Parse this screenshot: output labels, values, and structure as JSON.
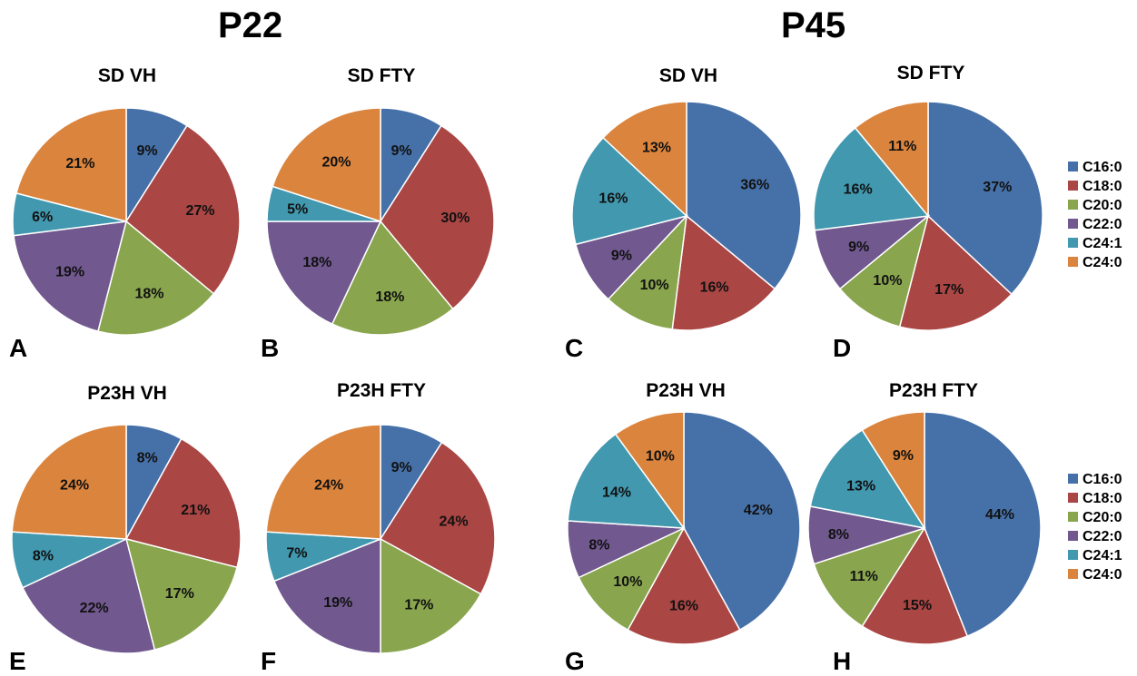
{
  "headings": {
    "left": "P22",
    "right": "P45"
  },
  "legend": [
    {
      "name": "C16:0",
      "color": "#4671A8"
    },
    {
      "name": "C18:0",
      "color": "#AA4644"
    },
    {
      "name": "C20:0",
      "color": "#89A54E"
    },
    {
      "name": "C22:0",
      "color": "#71588F"
    },
    {
      "name": "C24:1",
      "color": "#4198AF"
    },
    {
      "name": "C24:0",
      "color": "#DB843D"
    }
  ],
  "chart_data": [
    {
      "type": "pie",
      "panel": "A",
      "title": "SD VH",
      "group": "P22",
      "labels": [
        "C16:0",
        "C18:0",
        "C20:0",
        "C22:0",
        "C24:1",
        "C24:0"
      ],
      "values": [
        9,
        27,
        18,
        19,
        6,
        21
      ],
      "value_labels": [
        "9%",
        "27%",
        "18%",
        "19%",
        "6%",
        "21%"
      ]
    },
    {
      "type": "pie",
      "panel": "B",
      "title": "SD FTY",
      "group": "P22",
      "labels": [
        "C16:0",
        "C18:0",
        "C20:0",
        "C22:0",
        "C24:1",
        "C24:0"
      ],
      "values": [
        9,
        30,
        18,
        18,
        5,
        20
      ],
      "value_labels": [
        "9%",
        "30%",
        "18%",
        "18%",
        "5%",
        "20%"
      ]
    },
    {
      "type": "pie",
      "panel": "C",
      "title": "SD VH",
      "group": "P45",
      "labels": [
        "C16:0",
        "C18:0",
        "C20:0",
        "C22:0",
        "C24:1",
        "C24:0"
      ],
      "values": [
        36,
        16,
        10,
        9,
        16,
        13
      ],
      "value_labels": [
        "36%",
        "16%",
        "10%",
        "9%",
        "16%",
        "13%"
      ]
    },
    {
      "type": "pie",
      "panel": "D",
      "title": "SD FTY",
      "group": "P45",
      "labels": [
        "C16:0",
        "C18:0",
        "C20:0",
        "C22:0",
        "C24:1",
        "C24:0"
      ],
      "values": [
        37,
        17,
        10,
        9,
        16,
        11
      ],
      "value_labels": [
        "37%",
        "17%",
        "10%",
        "9%",
        "16%",
        "11%"
      ]
    },
    {
      "type": "pie",
      "panel": "E",
      "title": "P23H  VH",
      "group": "P22",
      "labels": [
        "C16:0",
        "C18:0",
        "C20:0",
        "C22:0",
        "C24:1",
        "C24:0"
      ],
      "values": [
        8,
        21,
        17,
        22,
        8,
        24
      ],
      "value_labels": [
        "8%",
        "21%",
        "17%",
        "22%",
        "8%",
        "24%"
      ]
    },
    {
      "type": "pie",
      "panel": "F",
      "title": "P23H  FTY",
      "group": "P22",
      "labels": [
        "C16:0",
        "C18:0",
        "C20:0",
        "C22:0",
        "C24:1",
        "C24:0"
      ],
      "values": [
        9,
        24,
        17,
        19,
        7,
        24
      ],
      "value_labels": [
        "9%",
        "24%",
        "17%",
        "19%",
        "7%",
        "24%"
      ]
    },
    {
      "type": "pie",
      "panel": "G",
      "title": "P23H  VH",
      "group": "P45",
      "labels": [
        "C16:0",
        "C18:0",
        "C20:0",
        "C22:0",
        "C24:1",
        "C24:0"
      ],
      "values": [
        42,
        16,
        10,
        8,
        14,
        10
      ],
      "value_labels": [
        "42%",
        "16%",
        "10%",
        "8%",
        "14%",
        "10%"
      ]
    },
    {
      "type": "pie",
      "panel": "H",
      "title": "P23H FTY",
      "group": "P45",
      "labels": [
        "C16:0",
        "C18:0",
        "C20:0",
        "C22:0",
        "C24:1",
        "C24:0"
      ],
      "values": [
        44,
        15,
        11,
        8,
        13,
        9
      ],
      "value_labels": [
        "44%",
        "15%",
        "11%",
        "8%",
        "13%",
        "9%"
      ]
    }
  ]
}
